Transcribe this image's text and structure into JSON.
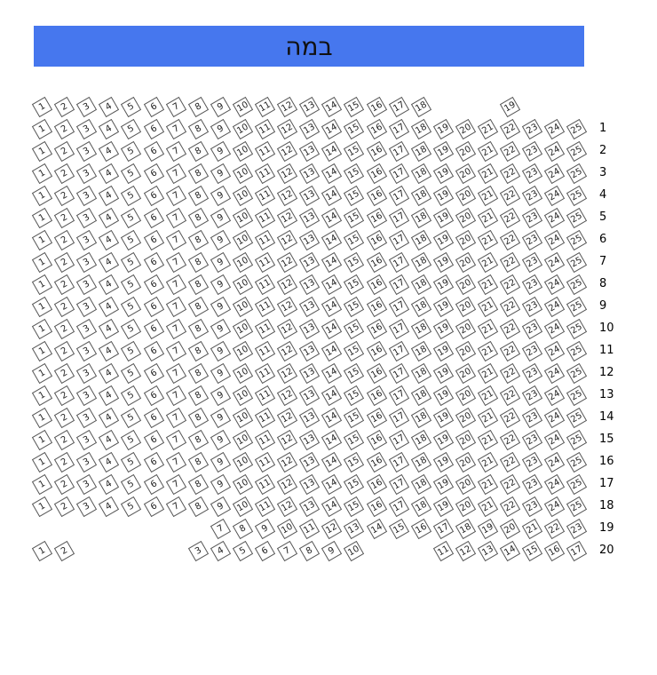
{
  "stage": {
    "label": "במה",
    "color": "#4677ee"
  },
  "rows": [
    {
      "label": "",
      "seats": [
        1,
        2,
        3,
        4,
        5,
        6,
        7,
        8,
        9,
        10,
        11,
        12,
        13,
        14,
        15,
        16,
        17,
        18,
        null,
        null,
        null,
        19
      ]
    },
    {
      "label": "1",
      "seats": [
        1,
        2,
        3,
        4,
        5,
        6,
        7,
        8,
        9,
        10,
        11,
        12,
        13,
        14,
        15,
        16,
        17,
        18,
        19,
        20,
        21,
        22,
        23,
        24,
        25
      ]
    },
    {
      "label": "2",
      "seats": [
        1,
        2,
        3,
        4,
        5,
        6,
        7,
        8,
        9,
        10,
        11,
        12,
        13,
        14,
        15,
        16,
        17,
        18,
        19,
        20,
        21,
        22,
        23,
        24,
        25
      ]
    },
    {
      "label": "3",
      "seats": [
        1,
        2,
        3,
        4,
        5,
        6,
        7,
        8,
        9,
        10,
        11,
        12,
        13,
        14,
        15,
        16,
        17,
        18,
        19,
        20,
        21,
        22,
        23,
        24,
        25
      ]
    },
    {
      "label": "4",
      "seats": [
        1,
        2,
        3,
        4,
        5,
        6,
        7,
        8,
        9,
        10,
        11,
        12,
        13,
        14,
        15,
        16,
        17,
        18,
        19,
        20,
        21,
        22,
        23,
        24,
        25
      ]
    },
    {
      "label": "5",
      "seats": [
        1,
        2,
        3,
        4,
        5,
        6,
        7,
        8,
        9,
        10,
        11,
        12,
        13,
        14,
        15,
        16,
        17,
        18,
        19,
        20,
        21,
        22,
        23,
        24,
        25
      ]
    },
    {
      "label": "6",
      "seats": [
        1,
        2,
        3,
        4,
        5,
        6,
        7,
        8,
        9,
        10,
        11,
        12,
        13,
        14,
        15,
        16,
        17,
        18,
        19,
        20,
        21,
        22,
        23,
        24,
        25
      ]
    },
    {
      "label": "7",
      "seats": [
        1,
        2,
        3,
        4,
        5,
        6,
        7,
        8,
        9,
        10,
        11,
        12,
        13,
        14,
        15,
        16,
        17,
        18,
        19,
        20,
        21,
        22,
        23,
        24,
        25
      ]
    },
    {
      "label": "8",
      "seats": [
        1,
        2,
        3,
        4,
        5,
        6,
        7,
        8,
        9,
        10,
        11,
        12,
        13,
        14,
        15,
        16,
        17,
        18,
        19,
        20,
        21,
        22,
        23,
        24,
        25
      ]
    },
    {
      "label": "9",
      "seats": [
        1,
        2,
        3,
        4,
        5,
        6,
        7,
        8,
        9,
        10,
        11,
        12,
        13,
        14,
        15,
        16,
        17,
        18,
        19,
        20,
        21,
        22,
        23,
        24,
        25
      ]
    },
    {
      "label": "10",
      "seats": [
        1,
        2,
        3,
        4,
        5,
        6,
        7,
        8,
        9,
        10,
        11,
        12,
        13,
        14,
        15,
        16,
        17,
        18,
        19,
        20,
        21,
        22,
        23,
        24,
        25
      ]
    },
    {
      "label": "11",
      "seats": [
        1,
        2,
        3,
        4,
        5,
        6,
        7,
        8,
        9,
        10,
        11,
        12,
        13,
        14,
        15,
        16,
        17,
        18,
        19,
        20,
        21,
        22,
        23,
        24,
        25
      ]
    },
    {
      "label": "12",
      "seats": [
        1,
        2,
        3,
        4,
        5,
        6,
        7,
        8,
        9,
        10,
        11,
        12,
        13,
        14,
        15,
        16,
        17,
        18,
        19,
        20,
        21,
        22,
        23,
        24,
        25
      ]
    },
    {
      "label": "13",
      "seats": [
        1,
        2,
        3,
        4,
        5,
        6,
        7,
        8,
        9,
        10,
        11,
        12,
        13,
        14,
        15,
        16,
        17,
        18,
        19,
        20,
        21,
        22,
        23,
        24,
        25
      ]
    },
    {
      "label": "14",
      "seats": [
        1,
        2,
        3,
        4,
        5,
        6,
        7,
        8,
        9,
        10,
        11,
        12,
        13,
        14,
        15,
        16,
        17,
        18,
        19,
        20,
        21,
        22,
        23,
        24,
        25
      ]
    },
    {
      "label": "15",
      "seats": [
        1,
        2,
        3,
        4,
        5,
        6,
        7,
        8,
        9,
        10,
        11,
        12,
        13,
        14,
        15,
        16,
        17,
        18,
        19,
        20,
        21,
        22,
        23,
        24,
        25
      ]
    },
    {
      "label": "16",
      "seats": [
        1,
        2,
        3,
        4,
        5,
        6,
        7,
        8,
        9,
        10,
        11,
        12,
        13,
        14,
        15,
        16,
        17,
        18,
        19,
        20,
        21,
        22,
        23,
        24,
        25
      ]
    },
    {
      "label": "17",
      "seats": [
        1,
        2,
        3,
        4,
        5,
        6,
        7,
        8,
        9,
        10,
        11,
        12,
        13,
        14,
        15,
        16,
        17,
        18,
        19,
        20,
        21,
        22,
        23,
        24,
        25
      ]
    },
    {
      "label": "18",
      "seats": [
        1,
        2,
        3,
        4,
        5,
        6,
        7,
        8,
        9,
        10,
        11,
        12,
        13,
        14,
        15,
        16,
        17,
        18,
        19,
        20,
        21,
        22,
        23,
        24,
        25
      ]
    },
    {
      "label": "19",
      "seats": [
        null,
        null,
        null,
        null,
        null,
        null,
        null,
        null,
        7,
        8,
        9,
        10,
        11,
        12,
        13,
        14,
        15,
        16,
        17,
        18,
        19,
        20,
        21,
        22,
        23
      ]
    },
    {
      "label": "20",
      "seats": [
        1,
        2,
        null,
        null,
        null,
        null,
        null,
        3,
        4,
        5,
        6,
        7,
        8,
        9,
        10,
        null,
        null,
        null,
        11,
        12,
        13,
        14,
        15,
        16,
        17
      ]
    }
  ]
}
